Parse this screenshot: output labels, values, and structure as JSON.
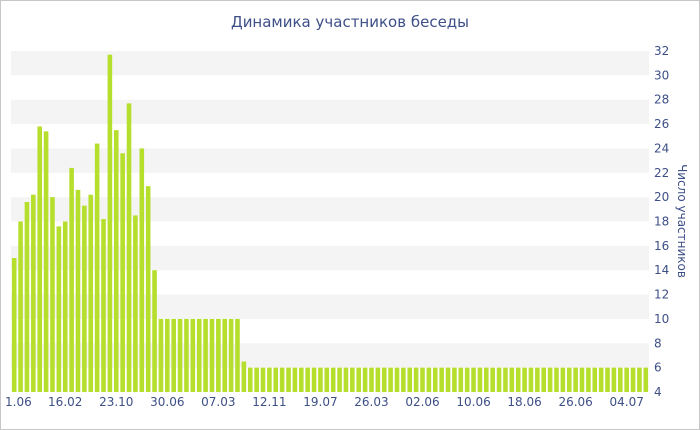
{
  "chart_data": {
    "type": "bar",
    "title": "Динамика участников беседы",
    "ylabel": "Число участников",
    "xlabel": "",
    "ylim": [
      4,
      32
    ],
    "yticks": [
      4,
      6,
      8,
      10,
      12,
      14,
      16,
      18,
      20,
      22,
      24,
      26,
      28,
      30,
      32
    ],
    "ytick_labels": [
      "4",
      "6",
      "8",
      "10",
      "12",
      "14",
      "16",
      "18",
      "20",
      "22",
      "24",
      "26",
      "28",
      "30",
      "32"
    ],
    "y_axis_side": "right",
    "grid": "alternating horizontal bands",
    "bar_color": "#b5df2c",
    "band_color": "#f4f4f4",
    "text_color": "#3e4f87",
    "x_tick_labels": [
      {
        "index": 0,
        "label": "1.06"
      },
      {
        "index": 8,
        "label": "16.02"
      },
      {
        "index": 16,
        "label": "23.10"
      },
      {
        "index": 24,
        "label": "30.06"
      },
      {
        "index": 32,
        "label": "07.03"
      },
      {
        "index": 40,
        "label": "12.11"
      },
      {
        "index": 48,
        "label": "19.07"
      },
      {
        "index": 56,
        "label": "26.03"
      },
      {
        "index": 64,
        "label": "02.06"
      },
      {
        "index": 72,
        "label": "10.06"
      },
      {
        "index": 80,
        "label": "18.06"
      },
      {
        "index": 88,
        "label": "26.06"
      },
      {
        "index": 96,
        "label": "04.07"
      }
    ],
    "values": [
      15,
      18,
      19.6,
      20.2,
      25.8,
      25.4,
      20,
      17.6,
      18,
      22.4,
      20.6,
      19.3,
      20.2,
      24.4,
      18.2,
      31.7,
      25.5,
      23.6,
      27.7,
      18.5,
      24,
      20.9,
      14,
      10,
      10,
      10,
      10,
      10,
      10,
      10,
      10,
      10,
      10,
      10,
      10,
      10,
      6.5,
      6,
      6,
      6,
      6,
      6,
      6,
      6,
      6,
      6,
      6,
      6,
      6,
      6,
      6,
      6,
      6,
      6,
      6,
      6,
      6,
      6,
      6,
      6,
      6,
      6,
      6,
      6,
      6,
      6,
      6,
      6,
      6,
      6,
      6,
      6,
      6,
      6,
      6,
      6,
      6,
      6,
      6,
      6,
      6,
      6,
      6,
      6,
      6,
      6,
      6,
      6,
      6,
      6,
      6,
      6,
      6,
      6,
      6,
      6,
      6,
      6,
      6,
      6
    ]
  }
}
